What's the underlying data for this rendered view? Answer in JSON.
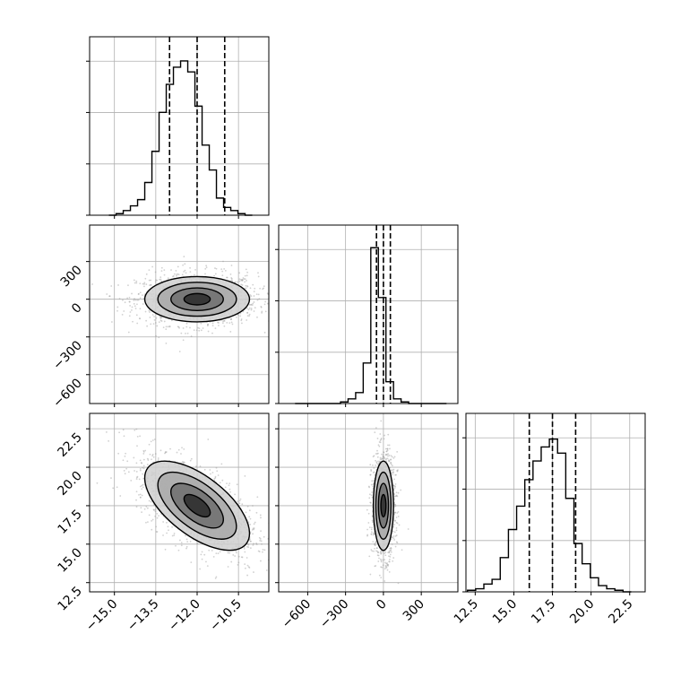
{
  "chart_data": {
    "type": "corner",
    "grid": true,
    "colors": {
      "line": "#000000",
      "grid": "#b0b0b0",
      "scatter": "#999999"
    },
    "parameters": [
      {
        "index": 0,
        "range": [
          -15.9,
          -9.4
        ],
        "ticks": [
          -15.0,
          -13.5,
          -12.0,
          -10.5
        ],
        "tick_labels": [
          "−15.0",
          "−13.5",
          "−12.0",
          "−10.5"
        ]
      },
      {
        "index": 1,
        "range": [
          -830,
          590
        ],
        "ticks": [
          -600,
          -300,
          0,
          300
        ],
        "tick_labels": [
          "−600",
          "−300",
          "0",
          "300"
        ]
      },
      {
        "index": 2,
        "range": [
          11.9,
          23.5
        ],
        "ticks": [
          12.5,
          15.0,
          17.5,
          20.0,
          22.5
        ],
        "tick_labels": [
          "12.5",
          "15.0",
          "17.5",
          "20.0",
          "22.5"
        ]
      }
    ],
    "histograms": [
      {
        "parameter": 0,
        "quantiles": [
          -13.0,
          -12.0,
          -11.0
        ],
        "counts_relative": [
          0.0,
          0.01,
          0.03,
          0.06,
          0.1,
          0.21,
          0.41,
          0.66,
          0.84,
          0.95,
          0.99,
          0.92,
          0.7,
          0.45,
          0.29,
          0.11,
          0.05,
          0.03,
          0.01,
          0.0
        ],
        "bin_range": [
          -15.2,
          -10.0
        ]
      },
      {
        "parameter": 1,
        "quantiles": [
          -55,
          0,
          55
        ],
        "counts_relative": [
          0.0,
          0.0,
          0.0,
          0.0,
          0.0,
          0.0,
          0.01,
          0.03,
          0.07,
          0.26,
          1.0,
          0.68,
          0.14,
          0.03,
          0.01,
          0.0,
          0.0,
          0.0,
          0.0,
          0.0
        ],
        "bin_range": [
          -700,
          500
        ]
      },
      {
        "parameter": 2,
        "quantiles": [
          16.0,
          17.5,
          19.0
        ],
        "counts_relative": [
          0.01,
          0.02,
          0.05,
          0.08,
          0.22,
          0.4,
          0.55,
          0.72,
          0.84,
          0.93,
          0.98,
          0.89,
          0.6,
          0.31,
          0.18,
          0.09,
          0.04,
          0.02,
          0.01,
          0.0
        ],
        "bin_range": [
          12.0,
          22.6
        ]
      }
    ],
    "pairs": [
      {
        "x_param": 0,
        "y_param": 1,
        "mean": [
          -12.0,
          0
        ],
        "sd": [
          0.95,
          90
        ],
        "rho": 0.0
      },
      {
        "x_param": 0,
        "y_param": 2,
        "mean": [
          -12.0,
          17.5
        ],
        "sd": [
          0.95,
          1.45
        ],
        "rho": -0.62
      },
      {
        "x_param": 1,
        "y_param": 2,
        "mean": [
          0,
          17.5
        ],
        "sd": [
          40,
          1.45
        ],
        "rho": 0.0
      }
    ]
  }
}
